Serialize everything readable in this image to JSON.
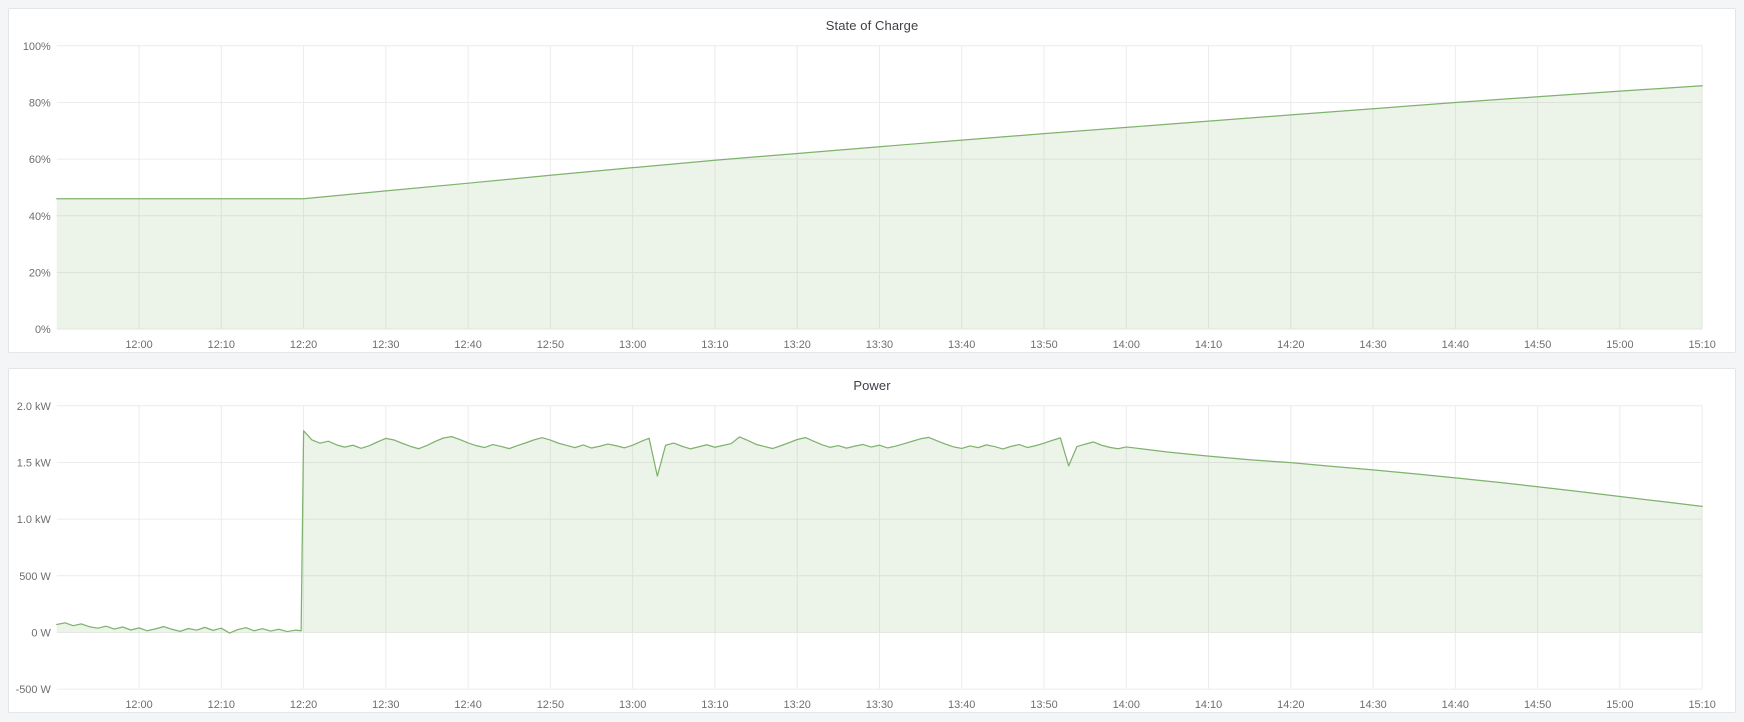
{
  "app": {
    "background_color": "#f4f5f6",
    "panel_background": "#ffffff",
    "panel_border_color": "#e3e5e6",
    "accent_green": "#7eb26d",
    "grid_color": "#ececec",
    "tick_color": "#6e6e6e",
    "title_color": "#3e4147"
  },
  "chart_data": [
    {
      "type": "area",
      "title": "State of Charge",
      "line_color": "#7eb26d",
      "fill_color": "#7eb26d",
      "fill_opacity": 0.15,
      "grid": true,
      "legend_position": "hidden",
      "fill_to": 0,
      "x_axis": {
        "unit": "time-of-day-minutes",
        "start": 710,
        "end": 910,
        "ticks": [
          [
            720,
            "12:00"
          ],
          [
            730,
            "12:10"
          ],
          [
            740,
            "12:20"
          ],
          [
            750,
            "12:30"
          ],
          [
            760,
            "12:40"
          ],
          [
            770,
            "12:50"
          ],
          [
            780,
            "13:00"
          ],
          [
            790,
            "13:10"
          ],
          [
            800,
            "13:20"
          ],
          [
            810,
            "13:30"
          ],
          [
            820,
            "13:40"
          ],
          [
            830,
            "13:50"
          ],
          [
            840,
            "14:00"
          ],
          [
            850,
            "14:10"
          ],
          [
            860,
            "14:20"
          ],
          [
            870,
            "14:30"
          ],
          [
            880,
            "14:40"
          ],
          [
            890,
            "14:50"
          ],
          [
            900,
            "15:00"
          ],
          [
            910,
            "15:10"
          ]
        ]
      },
      "y_axis": {
        "min": 0,
        "max": 100,
        "unit": "%",
        "ticks": [
          [
            0,
            "0%"
          ],
          [
            20,
            "20%"
          ],
          [
            40,
            "40%"
          ],
          [
            60,
            "60%"
          ],
          [
            80,
            "80%"
          ],
          [
            100,
            "100%"
          ]
        ]
      },
      "series": [
        {
          "name": "State of Charge",
          "points": [
            [
              710,
              46.0
            ],
            [
              720,
              46.0
            ],
            [
              730,
              46.0
            ],
            [
              740,
              46.0
            ],
            [
              750,
              48.8
            ],
            [
              760,
              51.5
            ],
            [
              770,
              54.3
            ],
            [
              780,
              57.0
            ],
            [
              790,
              59.6
            ],
            [
              800,
              62.0
            ],
            [
              810,
              64.4
            ],
            [
              820,
              66.7
            ],
            [
              830,
              69.0
            ],
            [
              840,
              71.2
            ],
            [
              850,
              73.4
            ],
            [
              860,
              75.6
            ],
            [
              870,
              77.8
            ],
            [
              880,
              80.0
            ],
            [
              890,
              82.0
            ],
            [
              900,
              84.0
            ],
            [
              910,
              85.9
            ]
          ]
        }
      ]
    },
    {
      "type": "area",
      "title": "Power",
      "line_color": "#7eb26d",
      "fill_color": "#7eb26d",
      "fill_opacity": 0.15,
      "grid": true,
      "legend_position": "hidden",
      "fill_to": 0,
      "x_axis": {
        "unit": "time-of-day-minutes",
        "start": 710,
        "end": 910,
        "ticks": [
          [
            720,
            "12:00"
          ],
          [
            730,
            "12:10"
          ],
          [
            740,
            "12:20"
          ],
          [
            750,
            "12:30"
          ],
          [
            760,
            "12:40"
          ],
          [
            770,
            "12:50"
          ],
          [
            780,
            "13:00"
          ],
          [
            790,
            "13:10"
          ],
          [
            800,
            "13:20"
          ],
          [
            810,
            "13:30"
          ],
          [
            820,
            "13:40"
          ],
          [
            830,
            "13:50"
          ],
          [
            840,
            "14:00"
          ],
          [
            850,
            "14:10"
          ],
          [
            860,
            "14:20"
          ],
          [
            870,
            "14:30"
          ],
          [
            880,
            "14:40"
          ],
          [
            890,
            "14:50"
          ],
          [
            900,
            "15:00"
          ],
          [
            910,
            "15:10"
          ]
        ]
      },
      "y_axis": {
        "min": -500,
        "max": 2000,
        "unit": "W",
        "ticks": [
          [
            -500,
            "-500 W"
          ],
          [
            0,
            "0 W"
          ],
          [
            500,
            "500 W"
          ],
          [
            1000,
            "1.0 kW"
          ],
          [
            1500,
            "1.5 kW"
          ],
          [
            2000,
            "2.0 kW"
          ]
        ]
      },
      "series": [
        {
          "name": "Power",
          "points": [
            [
              710,
              70
            ],
            [
              711,
              85
            ],
            [
              712,
              60
            ],
            [
              713,
              75
            ],
            [
              714,
              50
            ],
            [
              715,
              38
            ],
            [
              716,
              55
            ],
            [
              717,
              30
            ],
            [
              718,
              48
            ],
            [
              719,
              22
            ],
            [
              720,
              40
            ],
            [
              721,
              15
            ],
            [
              722,
              32
            ],
            [
              723,
              52
            ],
            [
              724,
              28
            ],
            [
              725,
              10
            ],
            [
              726,
              35
            ],
            [
              727,
              20
            ],
            [
              728,
              45
            ],
            [
              729,
              18
            ],
            [
              730,
              38
            ],
            [
              731,
              -5
            ],
            [
              732,
              25
            ],
            [
              733,
              42
            ],
            [
              734,
              15
            ],
            [
              735,
              33
            ],
            [
              736,
              12
            ],
            [
              737,
              28
            ],
            [
              738,
              8
            ],
            [
              739,
              20
            ],
            [
              739.7,
              15
            ],
            [
              740,
              1780
            ],
            [
              741,
              1700
            ],
            [
              742,
              1670
            ],
            [
              743,
              1688
            ],
            [
              744,
              1655
            ],
            [
              745,
              1635
            ],
            [
              746,
              1652
            ],
            [
              747,
              1625
            ],
            [
              748,
              1648
            ],
            [
              749,
              1682
            ],
            [
              750,
              1712
            ],
            [
              751,
              1698
            ],
            [
              752,
              1668
            ],
            [
              753,
              1642
            ],
            [
              754,
              1621
            ],
            [
              755,
              1650
            ],
            [
              756,
              1685
            ],
            [
              757,
              1716
            ],
            [
              758,
              1728
            ],
            [
              759,
              1702
            ],
            [
              760,
              1672
            ],
            [
              761,
              1648
            ],
            [
              762,
              1632
            ],
            [
              763,
              1658
            ],
            [
              764,
              1641
            ],
            [
              765,
              1622
            ],
            [
              766,
              1649
            ],
            [
              767,
              1673
            ],
            [
              768,
              1699
            ],
            [
              769,
              1718
            ],
            [
              770,
              1697
            ],
            [
              771,
              1669
            ],
            [
              772,
              1650
            ],
            [
              773,
              1631
            ],
            [
              774,
              1654
            ],
            [
              775,
              1627
            ],
            [
              776,
              1643
            ],
            [
              777,
              1662
            ],
            [
              778,
              1647
            ],
            [
              779,
              1629
            ],
            [
              780,
              1653
            ],
            [
              781,
              1684
            ],
            [
              782,
              1714
            ],
            [
              783,
              1380
            ],
            [
              784,
              1652
            ],
            [
              785,
              1671
            ],
            [
              786,
              1643
            ],
            [
              787,
              1620
            ],
            [
              788,
              1638
            ],
            [
              789,
              1656
            ],
            [
              790,
              1634
            ],
            [
              791,
              1651
            ],
            [
              792,
              1667
            ],
            [
              793,
              1725
            ],
            [
              794,
              1694
            ],
            [
              795,
              1660
            ],
            [
              796,
              1641
            ],
            [
              797,
              1623
            ],
            [
              798,
              1647
            ],
            [
              799,
              1675
            ],
            [
              800,
              1703
            ],
            [
              801,
              1719
            ],
            [
              802,
              1688
            ],
            [
              803,
              1657
            ],
            [
              804,
              1633
            ],
            [
              805,
              1649
            ],
            [
              806,
              1626
            ],
            [
              807,
              1644
            ],
            [
              808,
              1659
            ],
            [
              809,
              1636
            ],
            [
              810,
              1653
            ],
            [
              811,
              1628
            ],
            [
              812,
              1645
            ],
            [
              813,
              1666
            ],
            [
              814,
              1687
            ],
            [
              815,
              1709
            ],
            [
              816,
              1721
            ],
            [
              817,
              1691
            ],
            [
              818,
              1662
            ],
            [
              819,
              1638
            ],
            [
              820,
              1624
            ],
            [
              821,
              1646
            ],
            [
              822,
              1631
            ],
            [
              823,
              1655
            ],
            [
              824,
              1640
            ],
            [
              825,
              1619
            ],
            [
              826,
              1642
            ],
            [
              827,
              1658
            ],
            [
              828,
              1632
            ],
            [
              829,
              1648
            ],
            [
              830,
              1670
            ],
            [
              831,
              1695
            ],
            [
              832,
              1717
            ],
            [
              833,
              1470
            ],
            [
              834,
              1640
            ],
            [
              835,
              1661
            ],
            [
              836,
              1681
            ],
            [
              837,
              1652
            ],
            [
              838,
              1633
            ],
            [
              839,
              1621
            ],
            [
              840,
              1637
            ],
            [
              845,
              1592
            ],
            [
              850,
              1556
            ],
            [
              855,
              1524
            ],
            [
              860,
              1498
            ],
            [
              865,
              1466
            ],
            [
              870,
              1434
            ],
            [
              875,
              1400
            ],
            [
              880,
              1364
            ],
            [
              885,
              1326
            ],
            [
              890,
              1286
            ],
            [
              895,
              1244
            ],
            [
              900,
              1200
            ],
            [
              905,
              1156
            ],
            [
              910,
              1112
            ]
          ]
        }
      ]
    }
  ]
}
